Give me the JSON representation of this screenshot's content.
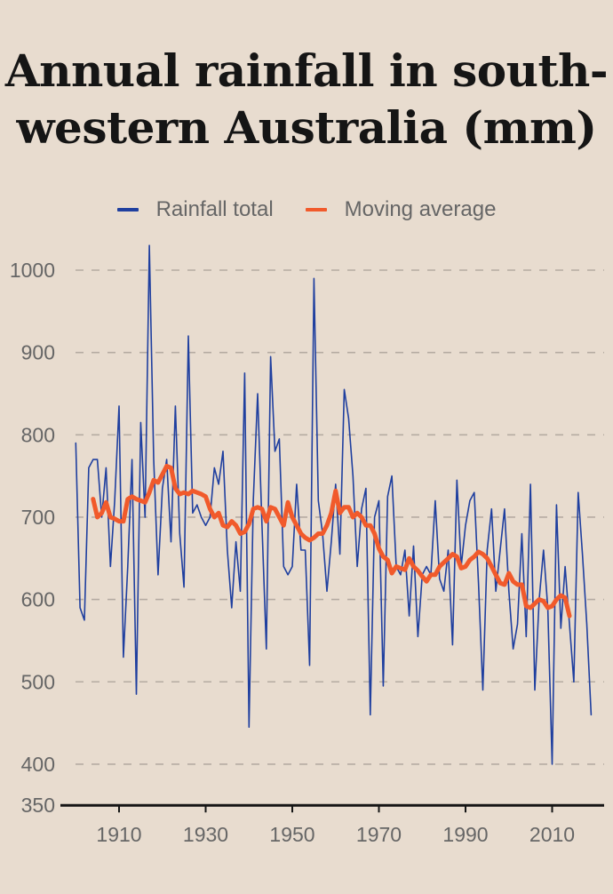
{
  "chart_data": {
    "type": "line",
    "title": "Annual rainfall in south-western Australia (mm)",
    "xlabel": "",
    "ylabel": "",
    "xlim": [
      1898,
      2021
    ],
    "ylim": [
      350,
      1030
    ],
    "xticks": [
      1910,
      1930,
      1950,
      1970,
      1990,
      2010
    ],
    "yticks": [
      1000,
      900,
      800,
      700,
      600,
      500,
      400,
      350
    ],
    "grid": "horizontal-dashed",
    "legend_position": "top-center",
    "series": [
      {
        "name": "Rainfall total",
        "color": "#1f3f9f",
        "x": [
          1900,
          1901,
          1902,
          1903,
          1904,
          1905,
          1906,
          1907,
          1908,
          1909,
          1910,
          1911,
          1912,
          1913,
          1914,
          1915,
          1916,
          1917,
          1918,
          1919,
          1920,
          1921,
          1922,
          1923,
          1924,
          1925,
          1926,
          1927,
          1928,
          1929,
          1930,
          1931,
          1932,
          1933,
          1934,
          1935,
          1936,
          1937,
          1938,
          1939,
          1940,
          1941,
          1942,
          1943,
          1944,
          1945,
          1946,
          1947,
          1948,
          1949,
          1950,
          1951,
          1952,
          1953,
          1954,
          1955,
          1956,
          1957,
          1958,
          1959,
          1960,
          1961,
          1962,
          1963,
          1964,
          1965,
          1966,
          1967,
          1968,
          1969,
          1970,
          1971,
          1972,
          1973,
          1974,
          1975,
          1976,
          1977,
          1978,
          1979,
          1980,
          1981,
          1982,
          1983,
          1984,
          1985,
          1986,
          1987,
          1988,
          1989,
          1990,
          1991,
          1992,
          1993,
          1994,
          1995,
          1996,
          1997,
          1998,
          1999,
          2000,
          2001,
          2002,
          2003,
          2004,
          2005,
          2006,
          2007,
          2008,
          2009,
          2010,
          2011,
          2012,
          2013,
          2014,
          2015,
          2016,
          2017,
          2018,
          2019
        ],
        "values": [
          790,
          590,
          575,
          760,
          770,
          770,
          700,
          760,
          640,
          720,
          835,
          530,
          640,
          770,
          485,
          815,
          700,
          1030,
          770,
          630,
          735,
          770,
          670,
          835,
          680,
          615,
          920,
          705,
          715,
          700,
          690,
          700,
          760,
          740,
          780,
          660,
          590,
          670,
          610,
          875,
          445,
          720,
          850,
          690,
          540,
          895,
          780,
          795,
          640,
          630,
          640,
          740,
          660,
          660,
          520,
          990,
          720,
          680,
          610,
          670,
          740,
          655,
          855,
          820,
          750,
          640,
          710,
          735,
          460,
          700,
          720,
          495,
          725,
          750,
          640,
          630,
          660,
          580,
          665,
          555,
          630,
          640,
          630,
          720,
          625,
          610,
          660,
          545,
          745,
          640,
          690,
          720,
          730,
          620,
          490,
          660,
          710,
          610,
          660,
          710,
          610,
          540,
          570,
          680,
          555,
          740,
          490,
          600,
          660,
          590,
          400,
          715,
          565,
          640,
          570,
          500,
          730,
          655,
          570,
          460
        ]
      },
      {
        "name": "Moving average",
        "color": "#f15a2b",
        "x": [
          1904,
          1905,
          1906,
          1907,
          1908,
          1909,
          1910,
          1911,
          1912,
          1913,
          1914,
          1915,
          1916,
          1917,
          1918,
          1919,
          1920,
          1921,
          1922,
          1923,
          1924,
          1925,
          1926,
          1927,
          1928,
          1929,
          1930,
          1931,
          1932,
          1933,
          1934,
          1935,
          1936,
          1937,
          1938,
          1939,
          1940,
          1941,
          1942,
          1943,
          1944,
          1945,
          1946,
          1947,
          1948,
          1949,
          1950,
          1951,
          1952,
          1953,
          1954,
          1955,
          1956,
          1957,
          1958,
          1959,
          1960,
          1961,
          1962,
          1963,
          1964,
          1965,
          1966,
          1967,
          1968,
          1969,
          1970,
          1971,
          1972,
          1973,
          1974,
          1975,
          1976,
          1977,
          1978,
          1979,
          1980,
          1981,
          1982,
          1983,
          1984,
          1985,
          1986,
          1987,
          1988,
          1989,
          1990,
          1991,
          1992,
          1993,
          1994,
          1995,
          1996,
          1997,
          1998,
          1999,
          2000,
          2001,
          2002,
          2003,
          2004,
          2005,
          2006,
          2007,
          2008,
          2009,
          2010,
          2011,
          2012,
          2013,
          2014
        ],
        "values": [
          722,
          700,
          705,
          718,
          700,
          698,
          695,
          695,
          722,
          725,
          722,
          720,
          718,
          730,
          745,
          742,
          752,
          762,
          760,
          735,
          728,
          730,
          728,
          732,
          730,
          728,
          725,
          710,
          700,
          705,
          690,
          688,
          695,
          690,
          680,
          682,
          692,
          710,
          712,
          710,
          695,
          712,
          710,
          700,
          690,
          718,
          700,
          690,
          680,
          675,
          672,
          675,
          680,
          680,
          690,
          705,
          732,
          705,
          712,
          712,
          700,
          705,
          700,
          690,
          690,
          680,
          662,
          652,
          648,
          632,
          640,
          638,
          636,
          650,
          640,
          635,
          628,
          622,
          630,
          630,
          640,
          645,
          650,
          655,
          652,
          638,
          640,
          648,
          652,
          658,
          655,
          650,
          640,
          630,
          620,
          618,
          632,
          622,
          618,
          618,
          592,
          590,
          595,
          600,
          598,
          590,
          592,
          600,
          605,
          602,
          580
        ]
      }
    ]
  }
}
